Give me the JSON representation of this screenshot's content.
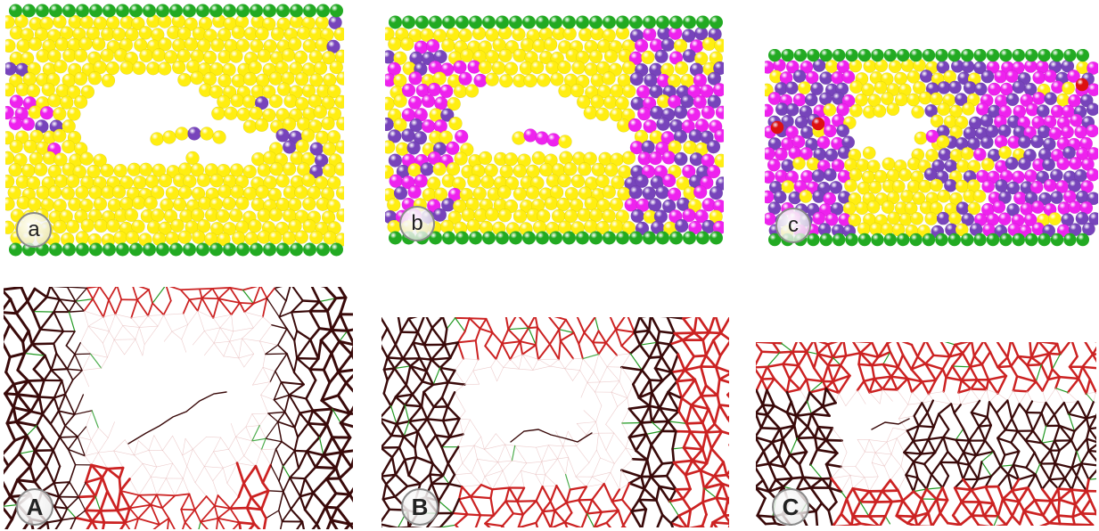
{
  "figure": {
    "colors": {
      "background": "#ffffff",
      "wall_particle": "#22aa22",
      "bulk_particle": "#ffee11",
      "magenta_particle": "#ee22ee",
      "purple_particle": "#7744bb",
      "red_particle": "#dd1111",
      "bond_dark": "#3a0a0a",
      "bond_red": "#cc2222",
      "bond_light": "#e9c0c0",
      "bond_green": "#229922"
    },
    "particle_panels": [
      {
        "label": "a"
      },
      {
        "label": "b"
      },
      {
        "label": "c"
      }
    ],
    "network_panels": [
      {
        "label": "A"
      },
      {
        "label": "B"
      },
      {
        "label": "C"
      }
    ]
  }
}
